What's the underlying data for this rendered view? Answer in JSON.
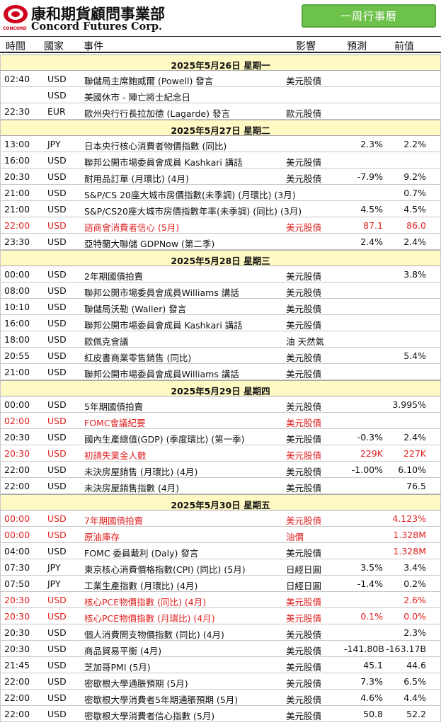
{
  "header": {
    "logo_cn": "康和期貨顧問事業部",
    "logo_en": "Concord Futures Corp.",
    "logo_small": "CONCORD",
    "badge": "一周行事曆"
  },
  "columns": {
    "time": "時間",
    "country": "國家",
    "event": "事件",
    "impact": "影響",
    "forecast": "預測",
    "previous": "前值"
  },
  "rows": [
    {
      "type": "date",
      "label": "2025年5月26日   星期一"
    },
    {
      "type": "event",
      "time": "02:40",
      "country": "USD",
      "event": "聯儲局主席鮑威爾 (Powell) 發言",
      "impact": "美元股債",
      "forecast": "",
      "previous": "",
      "red": false
    },
    {
      "type": "event",
      "time": "",
      "country": "USD",
      "event": "美國休市 - 陣亡將士紀念日",
      "impact": "",
      "forecast": "",
      "previous": "",
      "red": false
    },
    {
      "type": "event",
      "time": "22:30",
      "country": "EUR",
      "event": "歐州央行行長拉加德 (Lagarde) 發言",
      "impact": "歐元股債",
      "forecast": "",
      "previous": "",
      "red": false
    },
    {
      "type": "date",
      "label": "2025年5月27日   星期二"
    },
    {
      "type": "event",
      "time": "13:00",
      "country": "JPY",
      "event": "日本央行核心消費者物價指數 (同比)",
      "impact": "",
      "forecast": "2.3%",
      "previous": "2.2%",
      "red": false
    },
    {
      "type": "event",
      "time": "16:00",
      "country": "USD",
      "event": "聯邦公開市場委員會成員 Kashkari 講話",
      "impact": "美元股債",
      "forecast": "",
      "previous": "",
      "red": false
    },
    {
      "type": "event",
      "time": "20:30",
      "country": "USD",
      "event": "耐用品訂單 (月環比) (4月)",
      "impact": "美元股債",
      "forecast": "-7.9%",
      "previous": "9.2%",
      "red": false
    },
    {
      "type": "event",
      "time": "21:00",
      "country": "USD",
      "event": "S&P/CS 20座大城市房價指數(未季調) (月環比) (3月)",
      "impact": "",
      "forecast": "",
      "previous": "0.7%",
      "red": false
    },
    {
      "type": "event",
      "time": "21:00",
      "country": "USD",
      "event": "S&P/CS20座大城市房價指數年率(未季調) (同比) (3月)",
      "impact": "",
      "forecast": "4.5%",
      "previous": "4.5%",
      "red": false
    },
    {
      "type": "event",
      "time": "22:00",
      "country": "USD",
      "event": "諮商會消費者信心 (5月)",
      "impact": "美元股債",
      "forecast": "87.1",
      "previous": "86.0",
      "red": true
    },
    {
      "type": "event",
      "time": "23:30",
      "country": "USD",
      "event": "亞特蘭大聯儲 GDPNow (第二季)",
      "impact": "",
      "forecast": "2.4%",
      "previous": "2.4%",
      "red": false
    },
    {
      "type": "date",
      "label": "2025年5月28日   星期三"
    },
    {
      "type": "event",
      "time": "00:00",
      "country": "USD",
      "event": "2年期國債拍賣",
      "impact": "美元股債",
      "forecast": "",
      "previous": "3.8%",
      "red": false
    },
    {
      "type": "event",
      "time": "08:00",
      "country": "USD",
      "event": "聯邦公開市場委員會成員Williams 講話",
      "impact": "美元股債",
      "forecast": "",
      "previous": "",
      "red": false
    },
    {
      "type": "event",
      "time": "10:10",
      "country": "USD",
      "event": "聯儲局沃勒 (Waller) 發言",
      "impact": "美元股債",
      "forecast": "",
      "previous": "",
      "red": false
    },
    {
      "type": "event",
      "time": "16:00",
      "country": "USD",
      "event": "聯邦公開市場委員會成員 Kashkari 講話",
      "impact": "美元股債",
      "forecast": "",
      "previous": "",
      "red": false
    },
    {
      "type": "event",
      "time": "18:00",
      "country": "USD",
      "event": "歐佩克會議",
      "impact": "油 天然氣",
      "forecast": "",
      "previous": "",
      "red": false
    },
    {
      "type": "event",
      "time": "20:55",
      "country": "USD",
      "event": "紅皮書商業零售銷售 (同比)",
      "impact": "美元股債",
      "forecast": "",
      "previous": "5.4%",
      "red": false
    },
    {
      "type": "event",
      "time": "21:00",
      "country": "USD",
      "event": "聯邦公開市場委員會成員Williams 講話",
      "impact": "美元股債",
      "forecast": "",
      "previous": "",
      "red": false
    },
    {
      "type": "date",
      "label": "2025年5月29日   星期四"
    },
    {
      "type": "event",
      "time": "00:00",
      "country": "USD",
      "event": "5年期國債拍賣",
      "impact": "美元股債",
      "forecast": "",
      "previous": "3.995%",
      "red": false
    },
    {
      "type": "event",
      "time": "02:00",
      "country": "USD",
      "event": "FOMC會議紀要",
      "impact": "美元股債",
      "forecast": "",
      "previous": "",
      "red": true
    },
    {
      "type": "event",
      "time": "20:30",
      "country": "USD",
      "event": "國內生產總值(GDP) (季度環比) (第一季)",
      "impact": "美元股債",
      "forecast": "-0.3%",
      "previous": "2.4%",
      "red": false
    },
    {
      "type": "event",
      "time": "20:30",
      "country": "USD",
      "event": "初請失業金人數",
      "impact": "美元股債",
      "forecast": "229K",
      "previous": "227K",
      "red": true
    },
    {
      "type": "event",
      "time": "22:00",
      "country": "USD",
      "event": "未決房屋銷售 (月環比) (4月)",
      "impact": "美元股債",
      "forecast": "-1.00%",
      "previous": "6.10%",
      "red": false
    },
    {
      "type": "event",
      "time": "22:00",
      "country": "USD",
      "event": "未決房屋銷售指數 (4月)",
      "impact": "美元股債",
      "forecast": "",
      "previous": "76.5",
      "red": false
    },
    {
      "type": "date",
      "label": "2025年5月30日   星期五"
    },
    {
      "type": "event",
      "time": "00:00",
      "country": "USD",
      "event": "7年期國債拍賣",
      "impact": "美元股債",
      "forecast": "",
      "previous": "4.123%",
      "red": true
    },
    {
      "type": "event",
      "time": "00:00",
      "country": "USD",
      "event": "原油庫存",
      "impact": "油價",
      "forecast": "",
      "previous": "1.328M",
      "red": true
    },
    {
      "type": "event",
      "time": "04:00",
      "country": "USD",
      "event": "FOMC 委員戴利 (Daly) 發言",
      "impact": "美元股債",
      "forecast": "",
      "previous": "1.328M",
      "red": false,
      "previous_red": true
    },
    {
      "type": "event",
      "time": "07:30",
      "country": "JPY",
      "event": "東京核心消費價格指數(CPI) (同比) (5月)",
      "impact": "日經日圓",
      "forecast": "3.5%",
      "previous": "3.4%",
      "red": false
    },
    {
      "type": "event",
      "time": "07:50",
      "country": "JPY",
      "event": "工業生產指數 (月環比) (4月)",
      "impact": "日經日圓",
      "forecast": "-1.4%",
      "previous": "0.2%",
      "red": false
    },
    {
      "type": "event",
      "time": "20:30",
      "country": "USD",
      "event": "核心PCE物價指數 (同比) (4月)",
      "impact": "美元股債",
      "forecast": "",
      "previous": "2.6%",
      "red": true
    },
    {
      "type": "event",
      "time": "20:30",
      "country": "USD",
      "event": "核心PCE物價指數 (月環比) (4月)",
      "impact": "美元股債",
      "forecast": "0.1%",
      "previous": "0.0%",
      "red": true
    },
    {
      "type": "event",
      "time": "20:30",
      "country": "USD",
      "event": "個人消費開支物價指數 (同比) (4月)",
      "impact": "美元股債",
      "forecast": "",
      "previous": "2.3%",
      "red": false
    },
    {
      "type": "event",
      "time": "20:30",
      "country": "USD",
      "event": "商品貿易平衡 (4月)",
      "impact": "美元股債",
      "forecast": "-141.80B",
      "previous": "-163.17B",
      "red": false
    },
    {
      "type": "event",
      "time": "21:45",
      "country": "USD",
      "event": "芝加哥PMI (5月)",
      "impact": "美元股債",
      "forecast": "45.1",
      "previous": "44.6",
      "red": false
    },
    {
      "type": "event",
      "time": "22:00",
      "country": "USD",
      "event": "密歇根大學通脹預期 (5月)",
      "impact": "美元股債",
      "forecast": "7.3%",
      "previous": "6.5%",
      "red": false
    },
    {
      "type": "event",
      "time": "22:00",
      "country": "USD",
      "event": "密歇根大學消費者5年期通脹預期 (5月)",
      "impact": "美元股債",
      "forecast": "4.6%",
      "previous": "4.4%",
      "red": false
    },
    {
      "type": "event",
      "time": "22:00",
      "country": "USD",
      "event": "密歇根大學消費者信心指數 (5月)",
      "impact": "美元股債",
      "forecast": "50.8",
      "previous": "52.2",
      "red": false
    }
  ],
  "colors": {
    "badge_bg": "#6cc24a",
    "date_row_bg": "#fff9c4",
    "highlight_red": "#e02020",
    "logo_red": "#d0021b"
  }
}
